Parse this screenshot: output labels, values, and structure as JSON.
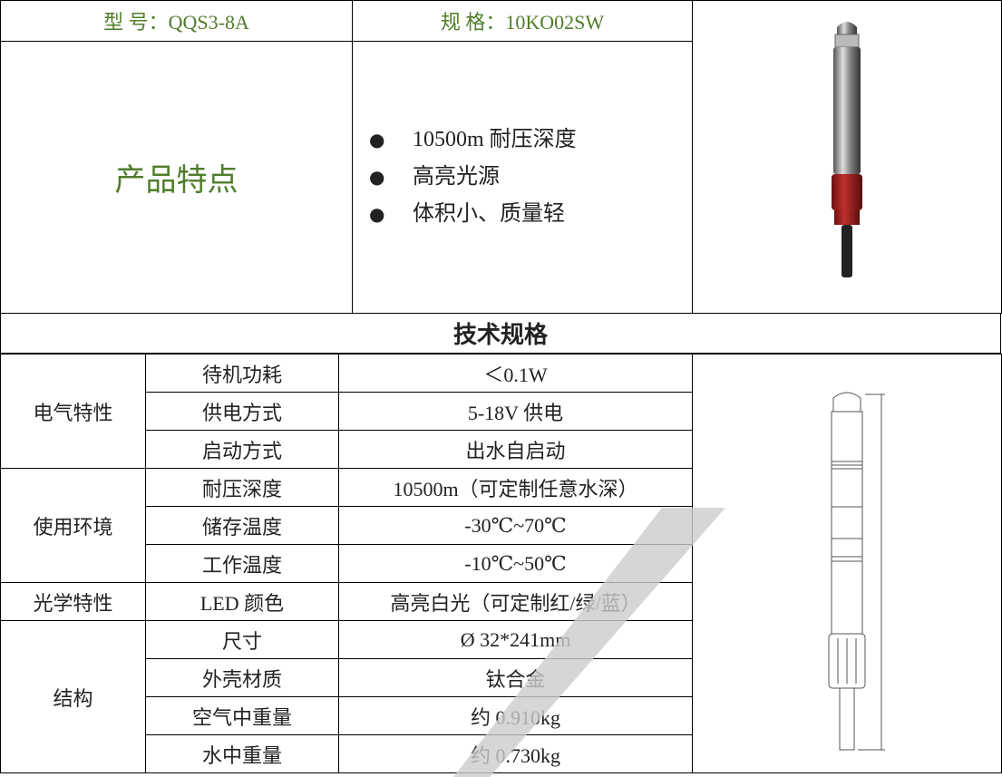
{
  "header": {
    "model": "型 号：QQS3-8A",
    "specification": "规 格：10KO02SW"
  },
  "features": {
    "title": "产品特点",
    "items": [
      "10500m 耐压深度",
      "高亮光源",
      "体积小、质量轻"
    ]
  },
  "specs": {
    "title": "技术规格",
    "groups": [
      {
        "name": "电气特性",
        "rows": [
          [
            "待机功耗",
            "＜0.1W"
          ],
          [
            "供电方式",
            "5-18V 供电"
          ],
          [
            "启动方式",
            "出水自启动"
          ]
        ]
      },
      {
        "name": "使用环境",
        "rows": [
          [
            "耐压深度",
            "10500m（可定制任意水深）"
          ],
          [
            "储存温度",
            "-30℃~70℃"
          ],
          [
            "工作温度",
            "-10℃~50℃"
          ]
        ]
      },
      {
        "name": "光学特性",
        "rows": [
          [
            "LED 颜色",
            "高亮白光（可定制红/绿/蓝）"
          ]
        ]
      },
      {
        "name": "结构",
        "rows": [
          [
            "尺寸",
            "Ø 32*241mm"
          ],
          [
            "外壳材质",
            "钛合金"
          ],
          [
            "空气中重量",
            "约 0.910kg"
          ],
          [
            "水中重量",
            "约 0.730kg"
          ]
        ]
      }
    ]
  }
}
